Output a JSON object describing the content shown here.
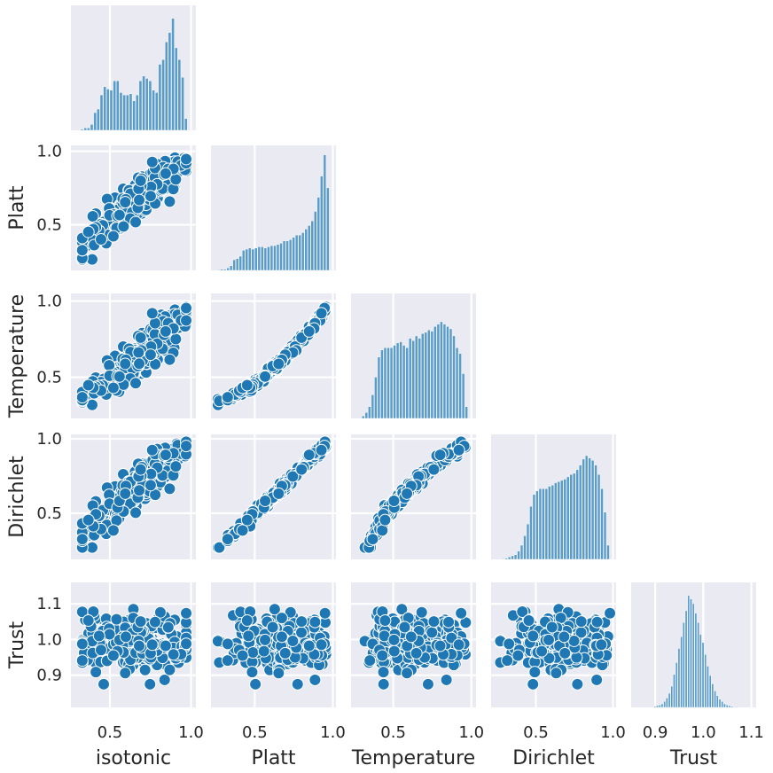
{
  "chart_data": {
    "type": "pairplot",
    "corner": true,
    "variables": [
      "isotonic",
      "Platt",
      "Temperature",
      "Dirichlet",
      "Trust"
    ],
    "colors": {
      "background": "#eaeaf2",
      "grid": "#ffffff",
      "marker": "#1f77b4",
      "bar": "#5b9bc8",
      "marker_edge": "#ffffff"
    },
    "xlim": {
      "isotonic": [
        0.26,
        1.03
      ],
      "Platt": [
        0.22,
        1.02
      ],
      "Temperature": [
        0.23,
        1.03
      ],
      "Dirichlet": [
        0.21,
        1.02
      ],
      "Trust": [
        0.85,
        1.11
      ]
    },
    "ylim": {
      "Platt": [
        0.19,
        1.04
      ],
      "Temperature": [
        0.23,
        1.05
      ],
      "Dirichlet": [
        0.19,
        1.03
      ],
      "Trust": [
        0.81,
        1.16
      ]
    },
    "x_ticks": {
      "isotonic": [
        {
          "v": 0.5,
          "label": "0.5"
        },
        {
          "v": 1.0,
          "label": "1.0"
        }
      ],
      "Platt": [
        {
          "v": 0.5,
          "label": "0.5"
        },
        {
          "v": 1.0,
          "label": "1.0"
        }
      ],
      "Temperature": [
        {
          "v": 0.5,
          "label": "0.5"
        },
        {
          "v": 1.0,
          "label": "1.0"
        }
      ],
      "Dirichlet": [
        {
          "v": 0.5,
          "label": "0.5"
        },
        {
          "v": 1.0,
          "label": "1.0"
        }
      ],
      "Trust": [
        {
          "v": 0.9,
          "label": "0.9"
        },
        {
          "v": 1.0,
          "label": "1.0"
        },
        {
          "v": 1.1,
          "label": "1.1"
        }
      ]
    },
    "y_ticks": {
      "Platt": [
        {
          "v": 0.5,
          "label": "0.5"
        },
        {
          "v": 1.0,
          "label": "1.0"
        }
      ],
      "Temperature": [
        {
          "v": 0.5,
          "label": "0.5"
        },
        {
          "v": 1.0,
          "label": "1.0"
        }
      ],
      "Dirichlet": [
        {
          "v": 0.5,
          "label": "0.5"
        },
        {
          "v": 1.0,
          "label": "1.0"
        }
      ],
      "Trust": [
        {
          "v": 0.9,
          "label": "0.9"
        },
        {
          "v": 1.0,
          "label": "1.0"
        },
        {
          "v": 1.1,
          "label": "1.1"
        }
      ]
    },
    "histograms": {
      "isotonic": [
        [
          0.33,
          0.01
        ],
        [
          0.35,
          0.02
        ],
        [
          0.37,
          0.02
        ],
        [
          0.39,
          0.05
        ],
        [
          0.41,
          0.15
        ],
        [
          0.43,
          0.18
        ],
        [
          0.45,
          0.3
        ],
        [
          0.47,
          0.37
        ],
        [
          0.49,
          0.35
        ],
        [
          0.51,
          0.34
        ],
        [
          0.53,
          0.42
        ],
        [
          0.55,
          0.42
        ],
        [
          0.57,
          0.32
        ],
        [
          0.59,
          0.3
        ],
        [
          0.61,
          0.3
        ],
        [
          0.63,
          0.31
        ],
        [
          0.65,
          0.25
        ],
        [
          0.67,
          0.3
        ],
        [
          0.69,
          0.42
        ],
        [
          0.71,
          0.46
        ],
        [
          0.73,
          0.44
        ],
        [
          0.75,
          0.42
        ],
        [
          0.77,
          0.34
        ],
        [
          0.79,
          0.32
        ],
        [
          0.81,
          0.56
        ],
        [
          0.83,
          0.6
        ],
        [
          0.85,
          0.75
        ],
        [
          0.87,
          0.83
        ],
        [
          0.89,
          0.95
        ],
        [
          0.91,
          0.7
        ],
        [
          0.93,
          0.6
        ],
        [
          0.95,
          0.45
        ],
        [
          0.97,
          0.1
        ]
      ],
      "Platt": [
        [
          0.27,
          0.005
        ],
        [
          0.29,
          0.01
        ],
        [
          0.31,
          0.01
        ],
        [
          0.33,
          0.02
        ],
        [
          0.35,
          0.04
        ],
        [
          0.37,
          0.09
        ],
        [
          0.39,
          0.1
        ],
        [
          0.41,
          0.12
        ],
        [
          0.43,
          0.17
        ],
        [
          0.45,
          0.18
        ],
        [
          0.47,
          0.19
        ],
        [
          0.49,
          0.18
        ],
        [
          0.51,
          0.19
        ],
        [
          0.53,
          0.2
        ],
        [
          0.55,
          0.2
        ],
        [
          0.57,
          0.19
        ],
        [
          0.59,
          0.2
        ],
        [
          0.61,
          0.21
        ],
        [
          0.63,
          0.21
        ],
        [
          0.65,
          0.22
        ],
        [
          0.67,
          0.23
        ],
        [
          0.69,
          0.25
        ],
        [
          0.71,
          0.25
        ],
        [
          0.73,
          0.26
        ],
        [
          0.75,
          0.28
        ],
        [
          0.77,
          0.3
        ],
        [
          0.79,
          0.3
        ],
        [
          0.81,
          0.32
        ],
        [
          0.83,
          0.35
        ],
        [
          0.85,
          0.38
        ],
        [
          0.87,
          0.42
        ],
        [
          0.89,
          0.5
        ],
        [
          0.91,
          0.62
        ],
        [
          0.93,
          0.8
        ],
        [
          0.95,
          0.98
        ],
        [
          0.97,
          0.7
        ]
      ],
      "Temperature": [
        [
          0.31,
          0.02
        ],
        [
          0.33,
          0.05
        ],
        [
          0.35,
          0.1
        ],
        [
          0.37,
          0.2
        ],
        [
          0.39,
          0.35
        ],
        [
          0.41,
          0.52
        ],
        [
          0.43,
          0.58
        ],
        [
          0.45,
          0.6
        ],
        [
          0.47,
          0.6
        ],
        [
          0.49,
          0.6
        ],
        [
          0.51,
          0.62
        ],
        [
          0.53,
          0.64
        ],
        [
          0.55,
          0.65
        ],
        [
          0.57,
          0.62
        ],
        [
          0.59,
          0.6
        ],
        [
          0.61,
          0.68
        ],
        [
          0.63,
          0.66
        ],
        [
          0.65,
          0.7
        ],
        [
          0.67,
          0.68
        ],
        [
          0.69,
          0.72
        ],
        [
          0.71,
          0.73
        ],
        [
          0.73,
          0.75
        ],
        [
          0.75,
          0.74
        ],
        [
          0.77,
          0.78
        ],
        [
          0.79,
          0.8
        ],
        [
          0.81,
          0.82
        ],
        [
          0.83,
          0.8
        ],
        [
          0.85,
          0.78
        ],
        [
          0.87,
          0.76
        ],
        [
          0.89,
          0.7
        ],
        [
          0.91,
          0.6
        ],
        [
          0.93,
          0.55
        ],
        [
          0.95,
          0.38
        ],
        [
          0.97,
          0.1
        ]
      ],
      "Dirichlet": [
        [
          0.29,
          0.005
        ],
        [
          0.31,
          0.01
        ],
        [
          0.33,
          0.02
        ],
        [
          0.35,
          0.03
        ],
        [
          0.37,
          0.04
        ],
        [
          0.39,
          0.07
        ],
        [
          0.41,
          0.12
        ],
        [
          0.43,
          0.2
        ],
        [
          0.45,
          0.3
        ],
        [
          0.47,
          0.45
        ],
        [
          0.49,
          0.55
        ],
        [
          0.51,
          0.58
        ],
        [
          0.53,
          0.6
        ],
        [
          0.55,
          0.6
        ],
        [
          0.57,
          0.6
        ],
        [
          0.59,
          0.62
        ],
        [
          0.61,
          0.63
        ],
        [
          0.63,
          0.65
        ],
        [
          0.65,
          0.66
        ],
        [
          0.67,
          0.67
        ],
        [
          0.69,
          0.68
        ],
        [
          0.71,
          0.7
        ],
        [
          0.73,
          0.72
        ],
        [
          0.75,
          0.73
        ],
        [
          0.77,
          0.76
        ],
        [
          0.79,
          0.8
        ],
        [
          0.81,
          0.85
        ],
        [
          0.83,
          0.88
        ],
        [
          0.85,
          0.86
        ],
        [
          0.87,
          0.84
        ],
        [
          0.89,
          0.8
        ],
        [
          0.91,
          0.72
        ],
        [
          0.93,
          0.6
        ],
        [
          0.95,
          0.4
        ],
        [
          0.97,
          0.12
        ]
      ],
      "Trust": [
        [
          0.9,
          0.01
        ],
        [
          0.905,
          0.015
        ],
        [
          0.91,
          0.02
        ],
        [
          0.915,
          0.03
        ],
        [
          0.92,
          0.05
        ],
        [
          0.925,
          0.08
        ],
        [
          0.93,
          0.12
        ],
        [
          0.935,
          0.18
        ],
        [
          0.94,
          0.28
        ],
        [
          0.945,
          0.38
        ],
        [
          0.95,
          0.5
        ],
        [
          0.955,
          0.6
        ],
        [
          0.96,
          0.72
        ],
        [
          0.965,
          0.82
        ],
        [
          0.97,
          0.95
        ],
        [
          0.975,
          0.92
        ],
        [
          0.98,
          0.88
        ],
        [
          0.985,
          0.8
        ],
        [
          0.99,
          0.72
        ],
        [
          0.995,
          0.62
        ],
        [
          1.0,
          0.55
        ],
        [
          1.005,
          0.45
        ],
        [
          1.01,
          0.35
        ],
        [
          1.015,
          0.27
        ],
        [
          1.02,
          0.2
        ],
        [
          1.025,
          0.14
        ],
        [
          1.03,
          0.1
        ],
        [
          1.035,
          0.07
        ],
        [
          1.04,
          0.05
        ],
        [
          1.045,
          0.03
        ],
        [
          1.05,
          0.02
        ],
        [
          1.055,
          0.015
        ],
        [
          1.06,
          0.01
        ],
        [
          1.07,
          0.005
        ]
      ]
    }
  }
}
